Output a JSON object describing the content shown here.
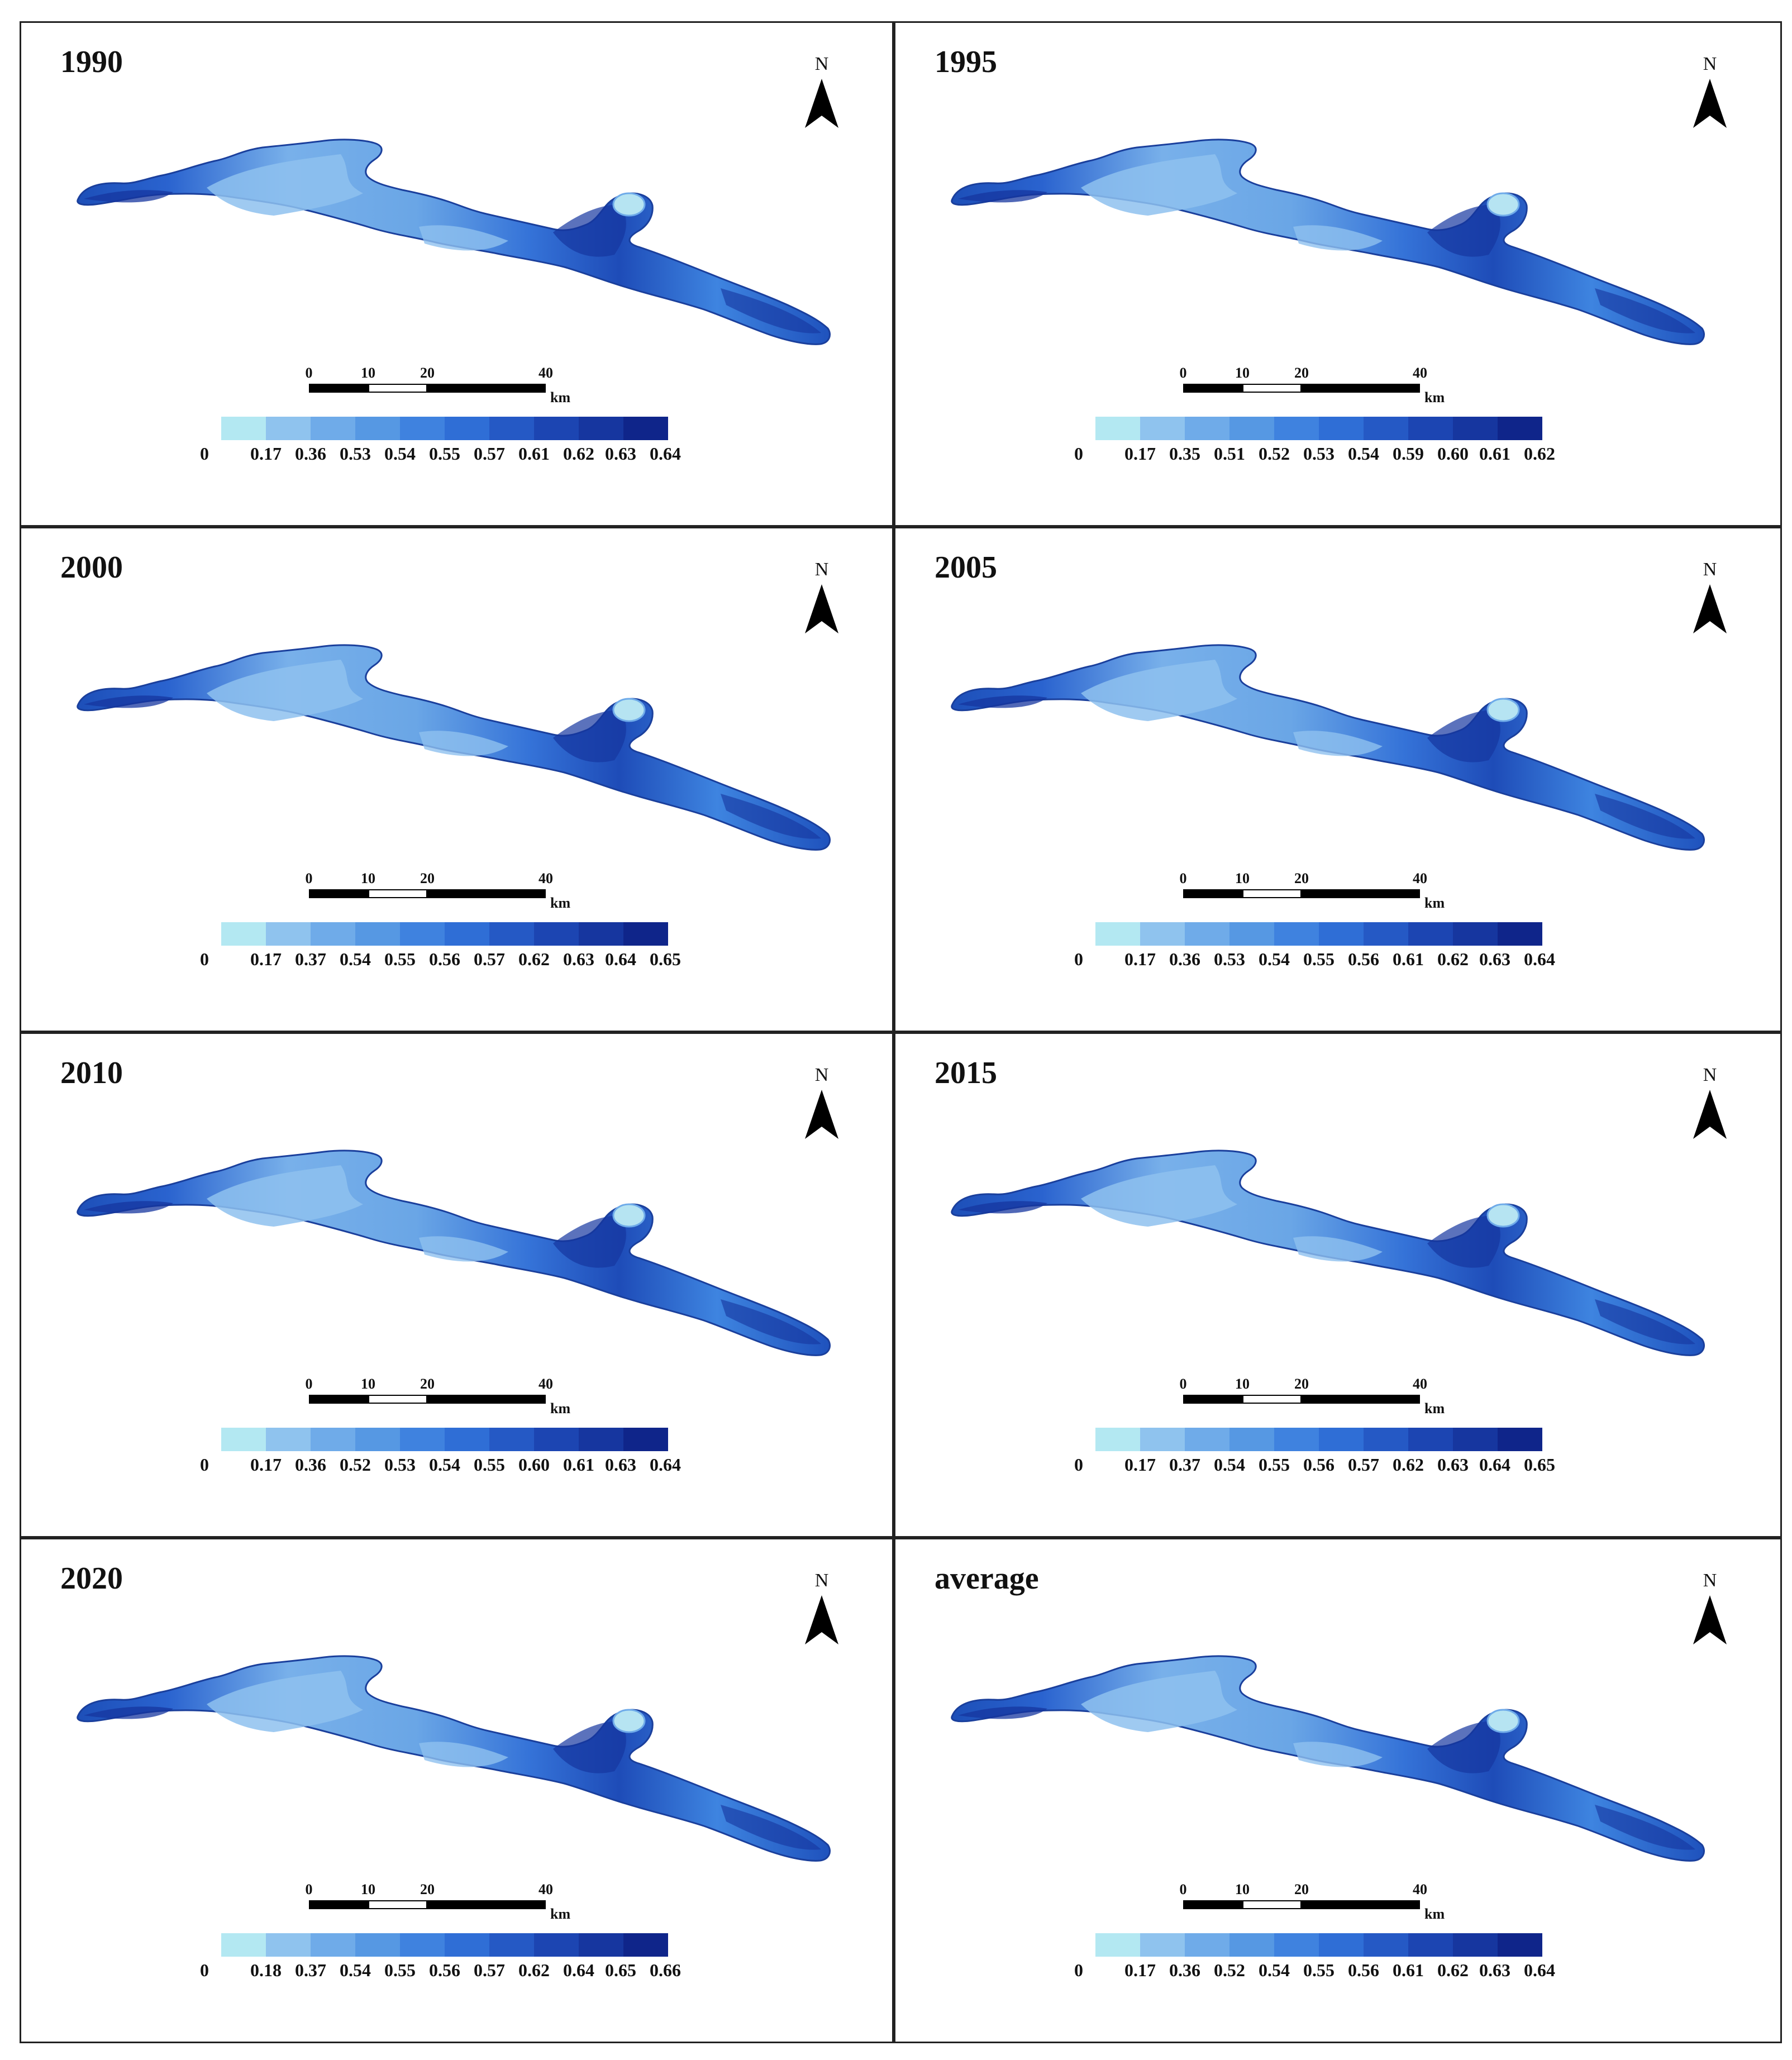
{
  "figure": {
    "panels": [
      {
        "title": "1990",
        "legend": [
          "0",
          "0.17",
          "0.36",
          "0.53",
          "0.54",
          "0.55",
          "0.57",
          "0.61",
          "0.62",
          "0.63",
          "0.64"
        ]
      },
      {
        "title": "1995",
        "legend": [
          "0",
          "0.17",
          "0.35",
          "0.51",
          "0.52",
          "0.53",
          "0.54",
          "0.59",
          "0.60",
          "0.61",
          "0.62"
        ]
      },
      {
        "title": "2000",
        "legend": [
          "0",
          "0.17",
          "0.37",
          "0.54",
          "0.55",
          "0.56",
          "0.57",
          "0.62",
          "0.63",
          "0.64",
          "0.65"
        ]
      },
      {
        "title": "2005",
        "legend": [
          "0",
          "0.17",
          "0.36",
          "0.53",
          "0.54",
          "0.55",
          "0.56",
          "0.61",
          "0.62",
          "0.63",
          "0.64"
        ]
      },
      {
        "title": "2010",
        "legend": [
          "0",
          "0.17",
          "0.36",
          "0.52",
          "0.53",
          "0.54",
          "0.55",
          "0.60",
          "0.61",
          "0.63",
          "0.64"
        ]
      },
      {
        "title": "2015",
        "legend": [
          "0",
          "0.17",
          "0.37",
          "0.54",
          "0.55",
          "0.56",
          "0.57",
          "0.62",
          "0.63",
          "0.64",
          "0.65"
        ]
      },
      {
        "title": "2020",
        "legend": [
          "0",
          "0.18",
          "0.37",
          "0.54",
          "0.55",
          "0.56",
          "0.57",
          "0.62",
          "0.64",
          "0.65",
          "0.66"
        ]
      },
      {
        "title": "average",
        "legend": [
          "0",
          "0.17",
          "0.36",
          "0.52",
          "0.54",
          "0.55",
          "0.56",
          "0.61",
          "0.62",
          "0.63",
          "0.64"
        ]
      }
    ],
    "north_label": "N",
    "scale": {
      "ticks": [
        "0",
        "10",
        "20",
        "40"
      ],
      "unit": "km"
    },
    "legend_colors": [
      "#b3e8f2",
      "#8fc3ee",
      "#6fabe9",
      "#5698e3",
      "#3f82df",
      "#2f6ed6",
      "#2559c5",
      "#1c45b2",
      "#16369f",
      "#0f258a"
    ],
    "icons": {
      "north_arrow": "north-arrow-icon"
    }
  }
}
